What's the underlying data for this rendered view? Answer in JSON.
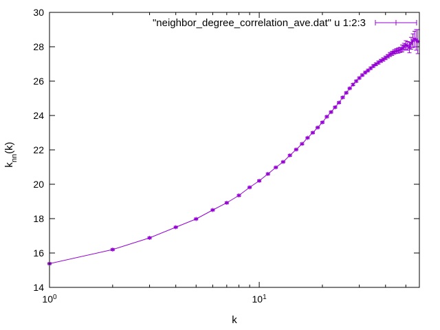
{
  "chart_data": {
    "type": "line",
    "title": "",
    "xlabel": "k",
    "ylabel_main": "k",
    "ylabel_sub": "nn",
    "ylabel_tail": "(k)",
    "xscale": "log",
    "xlim": [
      1,
      58
    ],
    "ylim": [
      14,
      30
    ],
    "yticks": [
      14,
      16,
      18,
      20,
      22,
      24,
      26,
      28,
      30
    ],
    "yticks_text": [
      "14",
      "16",
      "18",
      "20",
      "22",
      "24",
      "26",
      "28",
      "30"
    ],
    "xticks": [
      1,
      10
    ],
    "xtick_base": "10",
    "xtick_exps": [
      "0",
      "1"
    ],
    "grid": false,
    "legend_position": "top-right",
    "series": [
      {
        "name": "\"neighbor_degree_correlation_ave.dat\" u 1:2:3",
        "color": "#9400d3",
        "x": [
          1,
          2,
          3,
          4,
          5,
          6,
          7,
          8,
          9,
          10,
          11,
          12,
          13,
          14,
          15,
          16,
          17,
          18,
          19,
          20,
          21,
          22,
          23,
          24,
          25,
          26,
          27,
          28,
          29,
          30,
          31,
          32,
          33,
          34,
          35,
          36,
          37,
          38,
          39,
          40,
          41,
          42,
          43,
          44,
          45,
          46,
          47,
          48,
          49,
          50,
          51,
          52,
          53,
          54,
          55,
          56,
          57
        ],
        "y": [
          15.38,
          16.2,
          16.88,
          17.5,
          17.98,
          18.5,
          18.92,
          19.35,
          19.82,
          20.2,
          20.6,
          20.98,
          21.3,
          21.68,
          22.02,
          22.35,
          22.7,
          23.0,
          23.3,
          23.6,
          23.93,
          24.2,
          24.48,
          24.75,
          25.05,
          25.32,
          25.58,
          25.8,
          26.0,
          26.18,
          26.35,
          26.5,
          26.62,
          26.75,
          26.88,
          26.98,
          27.08,
          27.18,
          27.26,
          27.35,
          27.45,
          27.55,
          27.62,
          27.7,
          27.75,
          27.78,
          27.82,
          27.9,
          28.0,
          28.1,
          28.05,
          27.95,
          28.2,
          28.35,
          28.45,
          28.4,
          28.3
        ],
        "err": [
          0.05,
          0.05,
          0.05,
          0.05,
          0.05,
          0.05,
          0.05,
          0.05,
          0.05,
          0.05,
          0.05,
          0.05,
          0.05,
          0.05,
          0.05,
          0.05,
          0.05,
          0.05,
          0.05,
          0.05,
          0.05,
          0.05,
          0.05,
          0.05,
          0.05,
          0.05,
          0.05,
          0.06,
          0.06,
          0.06,
          0.06,
          0.07,
          0.07,
          0.07,
          0.08,
          0.08,
          0.09,
          0.09,
          0.1,
          0.1,
          0.1,
          0.12,
          0.12,
          0.13,
          0.14,
          0.15,
          0.15,
          0.2,
          0.2,
          0.25,
          0.25,
          0.3,
          0.35,
          0.4,
          0.45,
          0.6,
          0.7
        ]
      }
    ]
  }
}
